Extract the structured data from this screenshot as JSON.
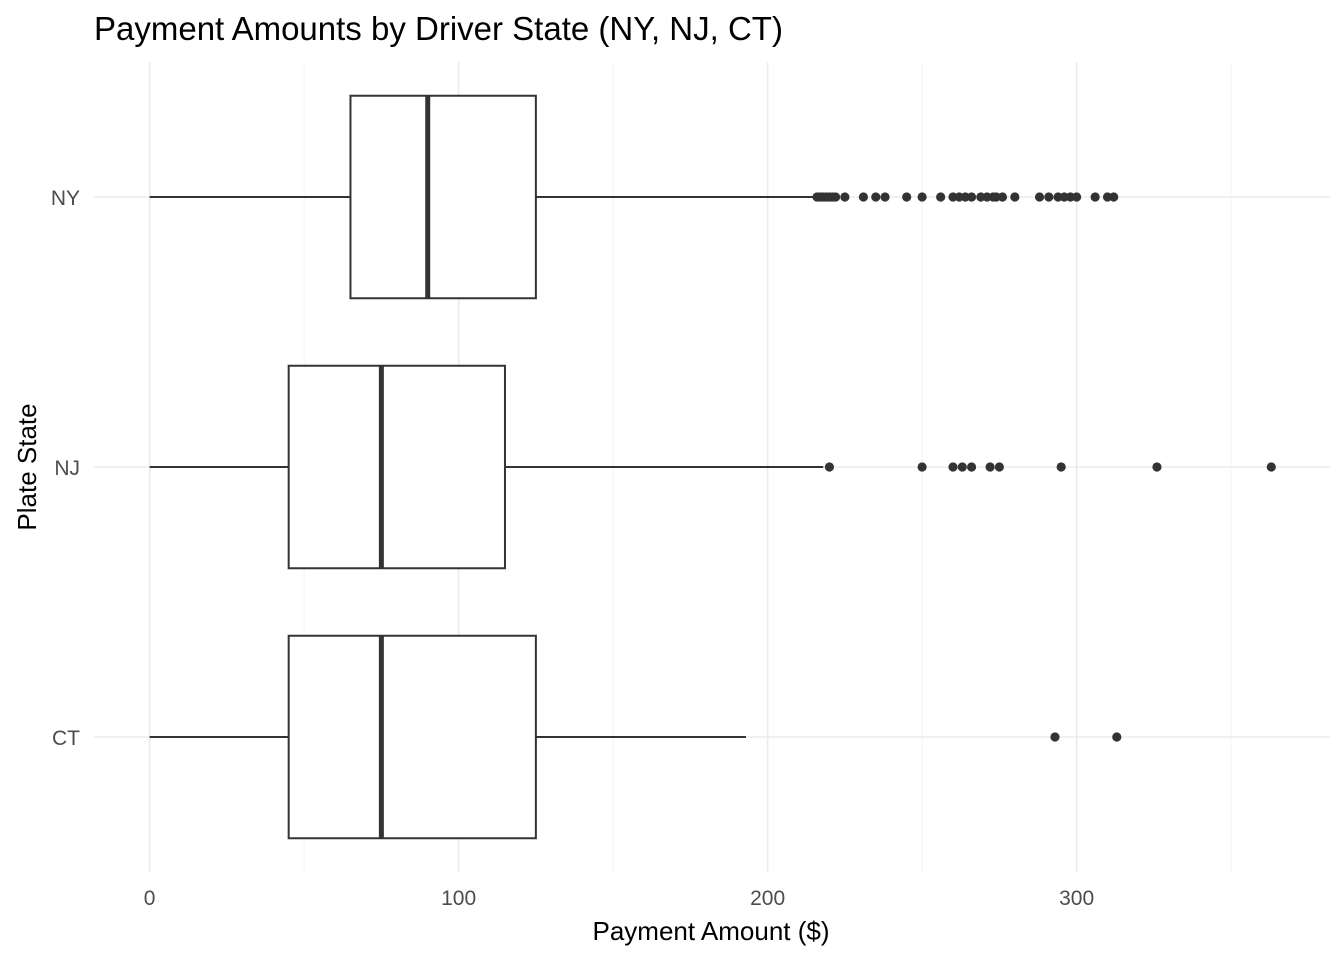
{
  "chart_data": {
    "type": "boxplot",
    "orientation": "horizontal",
    "title": "Payment Amounts by Driver State (NY, NJ, CT)",
    "xlabel": "Payment Amount ($)",
    "ylabel": "Plate State",
    "xlim": [
      -18,
      382
    ],
    "x_ticks": [
      0,
      100,
      200,
      300
    ],
    "x_minor_ticks": [
      50,
      150,
      250,
      350
    ],
    "categories": [
      "CT",
      "NJ",
      "NY"
    ],
    "grid": true,
    "legend": "none",
    "series": [
      {
        "name": "NY",
        "min": 0,
        "q1": 65,
        "median": 90,
        "q3": 125,
        "max": 215,
        "outliers": [
          216,
          217,
          218,
          219,
          220,
          221,
          222,
          225,
          231,
          235,
          238,
          245,
          250,
          256,
          260,
          262,
          264,
          266,
          269,
          271,
          273,
          274,
          276,
          280,
          288,
          291,
          294,
          296,
          298,
          300,
          306,
          310,
          312
        ]
      },
      {
        "name": "NJ",
        "min": 0,
        "q1": 45,
        "median": 75,
        "q3": 115,
        "max": 218,
        "outliers": [
          220,
          250,
          260,
          263,
          266,
          272,
          275,
          295,
          326,
          363
        ]
      },
      {
        "name": "CT",
        "min": 0,
        "q1": 45,
        "median": 75,
        "q3": 125,
        "max": 193,
        "outliers": [
          293,
          313
        ]
      }
    ]
  }
}
